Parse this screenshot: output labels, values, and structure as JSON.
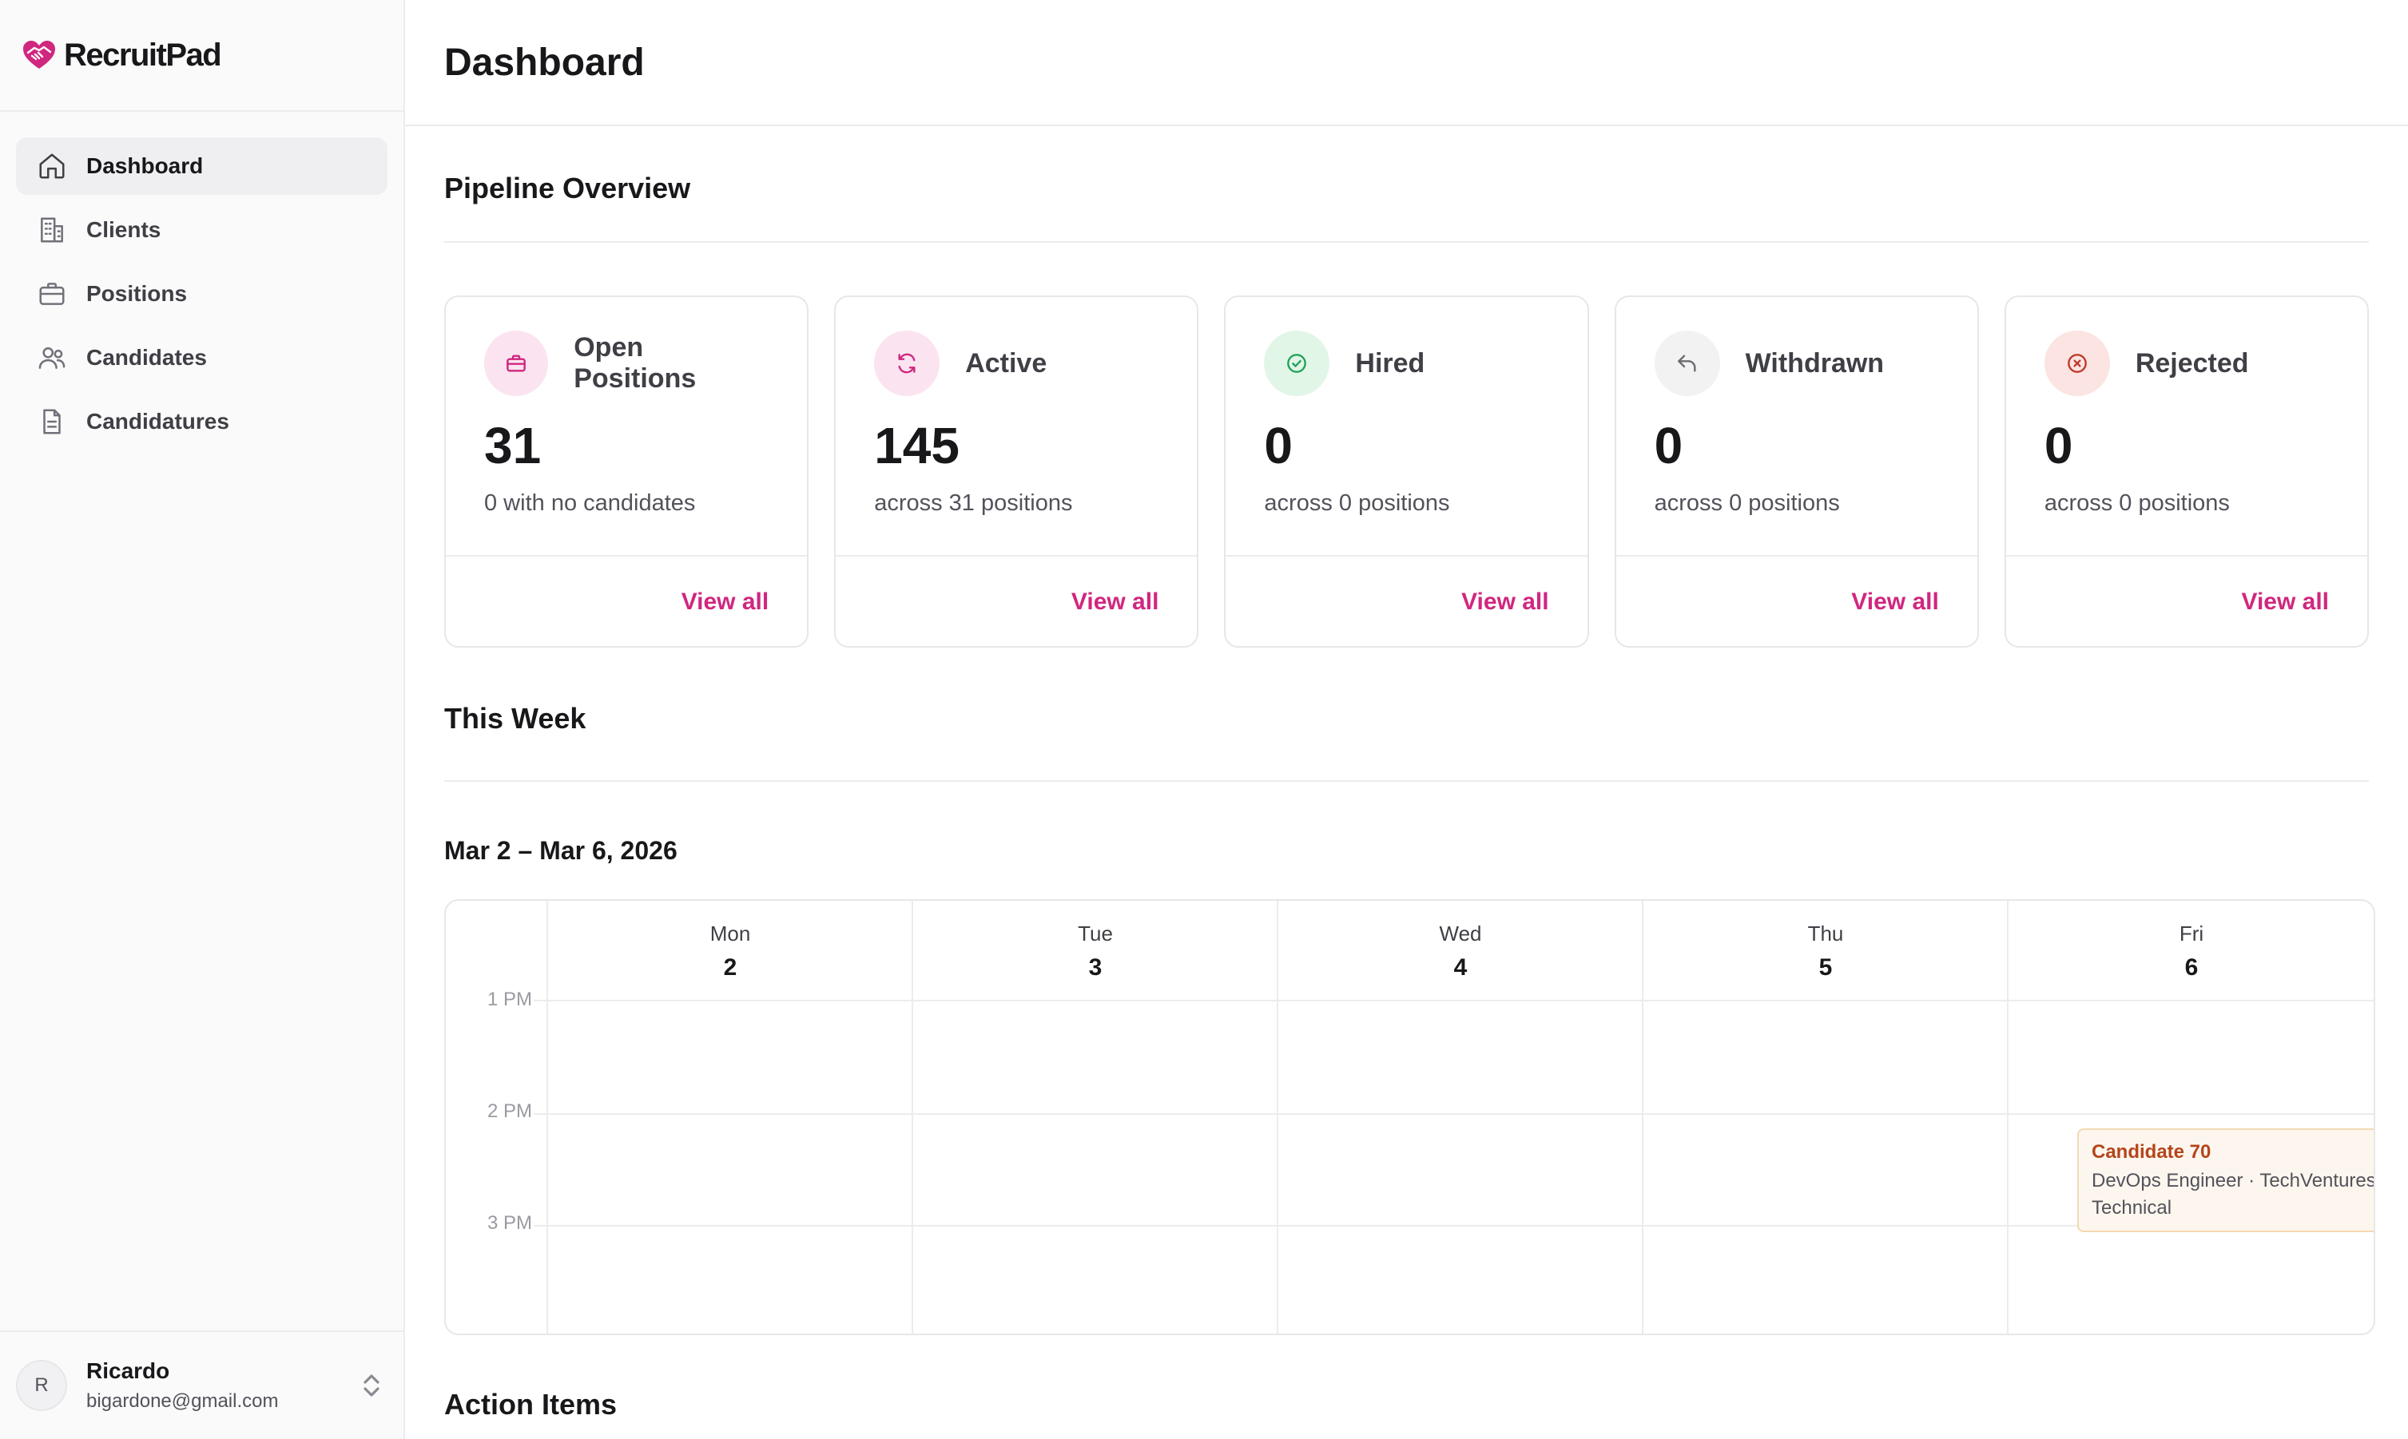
{
  "app": {
    "name": "RecruitPad",
    "brand_color": "#d0277f"
  },
  "sidebar": {
    "items": [
      {
        "label": "Dashboard",
        "icon": "home-icon",
        "active": true
      },
      {
        "label": "Clients",
        "icon": "building-icon",
        "active": false
      },
      {
        "label": "Positions",
        "icon": "briefcase-icon",
        "active": false
      },
      {
        "label": "Candidates",
        "icon": "users-icon",
        "active": false
      },
      {
        "label": "Candidatures",
        "icon": "file-icon",
        "active": false
      }
    ],
    "user": {
      "initial": "R",
      "name": "Ricardo",
      "email": "bigardone@gmail.com"
    }
  },
  "header": {
    "title": "Dashboard"
  },
  "pipeline": {
    "title": "Pipeline Overview",
    "cards": [
      {
        "label": "Open Positions",
        "value": "31",
        "sub": "0 with no candidates",
        "link": "View all",
        "icon": "briefcase-icon",
        "color": "#d0277f"
      },
      {
        "label": "Active",
        "value": "145",
        "sub": "across 31 positions",
        "link": "View all",
        "icon": "refresh-icon",
        "color": "#d0277f"
      },
      {
        "label": "Hired",
        "value": "0",
        "sub": "across 0 positions",
        "link": "View all",
        "icon": "check-circle-icon",
        "color": "#22a35a"
      },
      {
        "label": "Withdrawn",
        "value": "0",
        "sub": "across 0 positions",
        "link": "View all",
        "icon": "undo-icon",
        "color": "#6b6b73"
      },
      {
        "label": "Rejected",
        "value": "0",
        "sub": "across 0 positions",
        "link": "View all",
        "icon": "x-circle-icon",
        "color": "#c0392b"
      }
    ]
  },
  "week": {
    "title": "This Week",
    "range": "Mar 2 – Mar 6, 2026",
    "days": [
      {
        "name": "Mon",
        "num": "2"
      },
      {
        "name": "Tue",
        "num": "3"
      },
      {
        "name": "Wed",
        "num": "4"
      },
      {
        "name": "Thu",
        "num": "5"
      },
      {
        "name": "Fri",
        "num": "6"
      }
    ],
    "hours": [
      "1 PM",
      "2 PM",
      "3 PM"
    ],
    "event": {
      "title": "Candidate 70",
      "role": "DevOps Engineer · TechVentures",
      "type": "Technical"
    }
  },
  "action_items": {
    "title": "Action Items"
  }
}
